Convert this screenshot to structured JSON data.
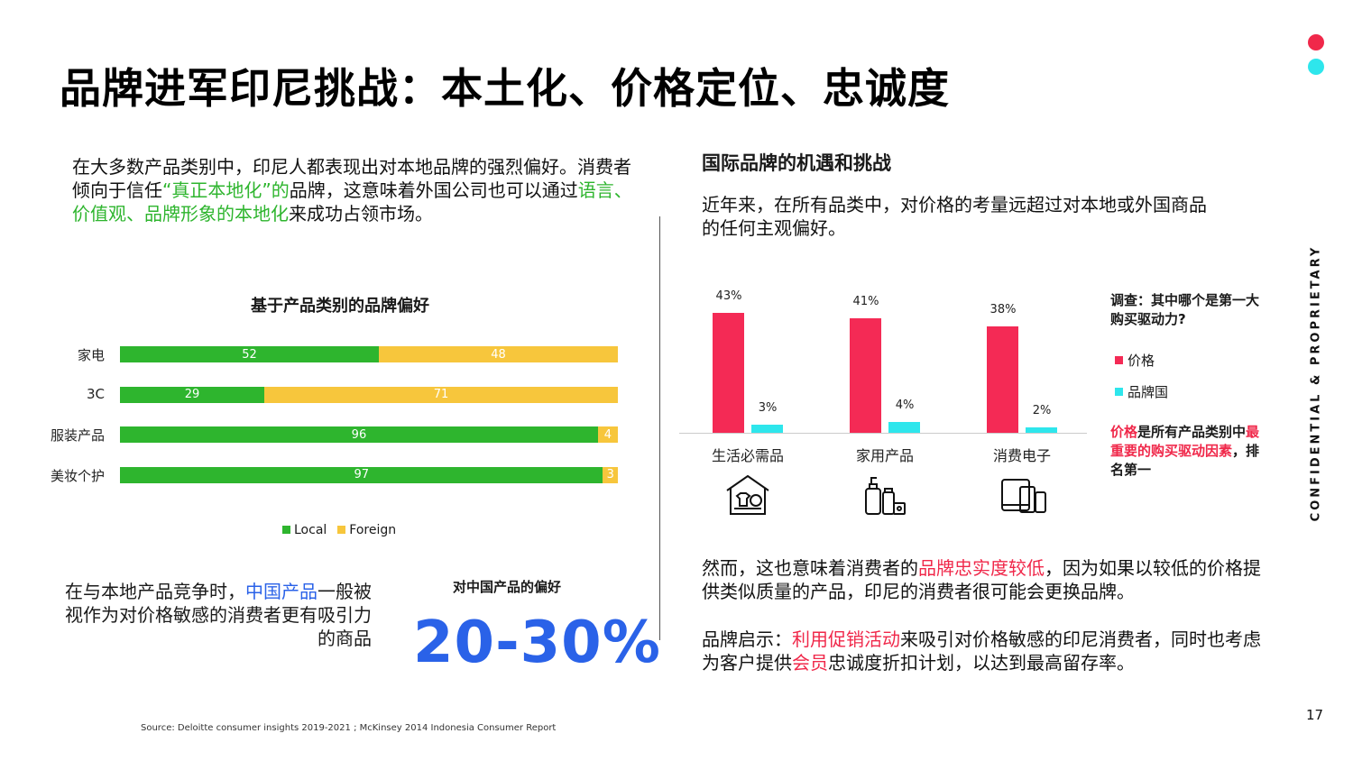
{
  "page": {
    "title": "品牌进军印尼挑战：本土化、价格定位、忠诚度",
    "side_label": "CONFIDENTIAL & PROPRIETARY",
    "page_number": "17",
    "source": "Source: Deloitte consumer insights 2019-2021 ; McKinsey 2014 Indonesia Consumer Report",
    "colors": {
      "red_dot": "#f0284a",
      "cyan_dot": "#2ee6ec",
      "green": "#2eb52e",
      "yellow": "#f7c63c",
      "blue": "#2a62e8",
      "red": "#f42a55",
      "cyan": "#2ee6ec"
    }
  },
  "left": {
    "intro": {
      "p1": "在大多数产品类别中，印尼人都表现出对本地品牌的强烈偏好。消费者倾向于信任",
      "p1_green": "“真正本地化”的",
      "p1b": "品牌，这意味着外国公司也可以通过",
      "p1_green2": "语言、价值观、品牌形象的本地化",
      "p1c": "来成功占领市场。"
    },
    "china": {
      "a": "在与本地产品竞争时，",
      "blue": "中国产品",
      "b": "一般被视作为对价格敏感的消费者更有吸引力的商品"
    },
    "pref_label": "对中国产品的偏好",
    "big_pct": "20-30%"
  },
  "right": {
    "heading": "国际品牌的机遇和挑战",
    "intro": "近年来，在所有品类中，对价格的考量远超过对本地或外国商品的任何主观偏好。",
    "survey_q": "调查：其中哪个是第一大购买驱动力?",
    "insight": {
      "a": "价格",
      "b": "是所有产品类别中",
      "c": "最重要的购买驱动因素",
      "d": "，排名第一"
    },
    "para3": {
      "a": "然而，这也意味着消费者的",
      "red": "品牌忠实度较低",
      "b": "，因为如果以较低的价格提供类似质量的产品，印尼的消费者很可能会更换品牌。"
    },
    "para4": {
      "a": "品牌启示：",
      "red": "利用促销活动",
      "b": "来吸引对价格敏感的印尼消费者，同时也考虑为客户提供",
      "red2": "会员",
      "c": "忠诚度折扣计划，以达到最高留存率。"
    },
    "icons": [
      "household-essentials-icon",
      "home-care-products-icon",
      "consumer-electronics-icon"
    ]
  },
  "chart_data": [
    {
      "type": "bar",
      "orientation": "horizontal",
      "stacked": true,
      "title": "基于产品类别的品牌偏好",
      "categories": [
        "家电",
        "3C",
        "服装产品",
        "美妆个护"
      ],
      "series": [
        {
          "name": "Local",
          "values": [
            52,
            29,
            96,
            97
          ]
        },
        {
          "name": "Foreign",
          "values": [
            48,
            71,
            4,
            3
          ]
        }
      ],
      "legend": "bottom",
      "grid": false
    },
    {
      "type": "bar",
      "categories": [
        "生活必需品",
        "家用产品",
        "消费电子"
      ],
      "series": [
        {
          "name": "价格",
          "values": [
            43,
            41,
            38
          ],
          "labels": [
            "43%",
            "41%",
            "38%"
          ]
        },
        {
          "name": "品牌国",
          "values": [
            3,
            4,
            2
          ],
          "labels": [
            "3%",
            "4%",
            "2%"
          ]
        }
      ],
      "legend": "right",
      "grid": false
    }
  ]
}
